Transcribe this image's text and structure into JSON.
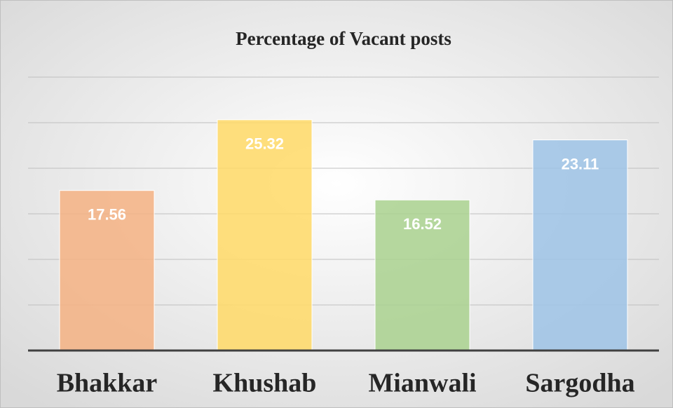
{
  "chart_data": {
    "type": "bar",
    "title": "Percentage of Vacant posts",
    "categories": [
      "Bhakkar",
      "Khushab",
      "Mianwali",
      "Sargodha"
    ],
    "values": [
      17.56,
      25.32,
      16.52,
      23.11
    ],
    "colors": [
      "#f4b183",
      "#ffd966",
      "#a9d18e",
      "#9dc3e6"
    ],
    "ylim": [
      0,
      30
    ],
    "yticks": [
      0,
      5,
      10,
      15,
      20,
      25,
      30
    ],
    "grid": true
  }
}
